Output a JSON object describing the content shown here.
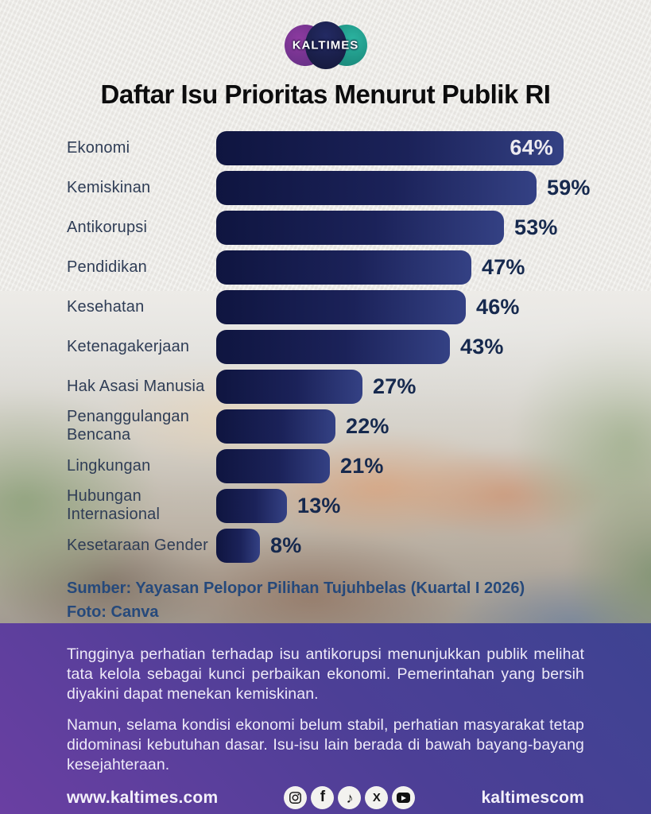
{
  "brand": {
    "logo_text": "KALTIMES"
  },
  "title": "Daftar Isu Prioritas Menurut Publik RI",
  "chart_data": {
    "type": "bar",
    "orientation": "horizontal",
    "title": "Daftar Isu Prioritas Menurut Publik RI",
    "unit": "%",
    "categories": [
      "Ekonomi",
      "Kemiskinan",
      "Antikorupsi",
      "Pendidikan",
      "Kesehatan",
      "Ketenagakerjaan",
      "Hak Asasi Manusia",
      "Penanggulangan Bencana",
      "Lingkungan",
      "Hubungan Internasional",
      "Kesetaraan Gender"
    ],
    "values": [
      64,
      59,
      53,
      47,
      46,
      43,
      27,
      22,
      21,
      13,
      8
    ],
    "value_labels": [
      "64%",
      "59%",
      "53%",
      "47%",
      "46%",
      "43%",
      "27%",
      "22%",
      "21%",
      "13%",
      "8%"
    ],
    "xlim": [
      0,
      64
    ],
    "first_value_label_inside_bar": true,
    "bar_color_start": "#0f1540",
    "bar_color_end": "#344184",
    "grid": false,
    "legend": false
  },
  "source": {
    "sumber": "Sumber:  Yayasan Pelopor Pilihan Tujuhbelas (Kuartal I 2026)",
    "foto": "Foto: Canva"
  },
  "panel": {
    "paragraph1": "Tingginya perhatian terhadap isu antikorupsi menunjukkan publik melihat tata kelola sebagai kunci perbaikan ekonomi. Pemerintahan yang bersih diyakini dapat menekan kemiskinan.",
    "paragraph2": "Namun, selama kondisi ekonomi belum stabil, perhatian masyarakat tetap didominasi kebutuhan dasar. Isu-isu lain berada di bawah bayang-bayang kesejahteraan."
  },
  "footer": {
    "website": "www.kaltimes.com",
    "handle": "kaltimescom",
    "social_icons": [
      "instagram-icon",
      "facebook-icon",
      "tiktok-icon",
      "x-icon",
      "youtube-icon"
    ]
  },
  "colors": {
    "background_paper": "#edebe7",
    "bar_start": "#0f1540",
    "bar_end": "#344184",
    "percent_text": "#16294e",
    "category_text": "#2f3d56",
    "source_text": "#26497b",
    "panel_top_right": "#3e4392",
    "panel_bottom_left": "#6a3fa2",
    "logo_purple": "#7b2d8b",
    "logo_teal": "#1f9e8e",
    "logo_navy": "#1c2150"
  }
}
